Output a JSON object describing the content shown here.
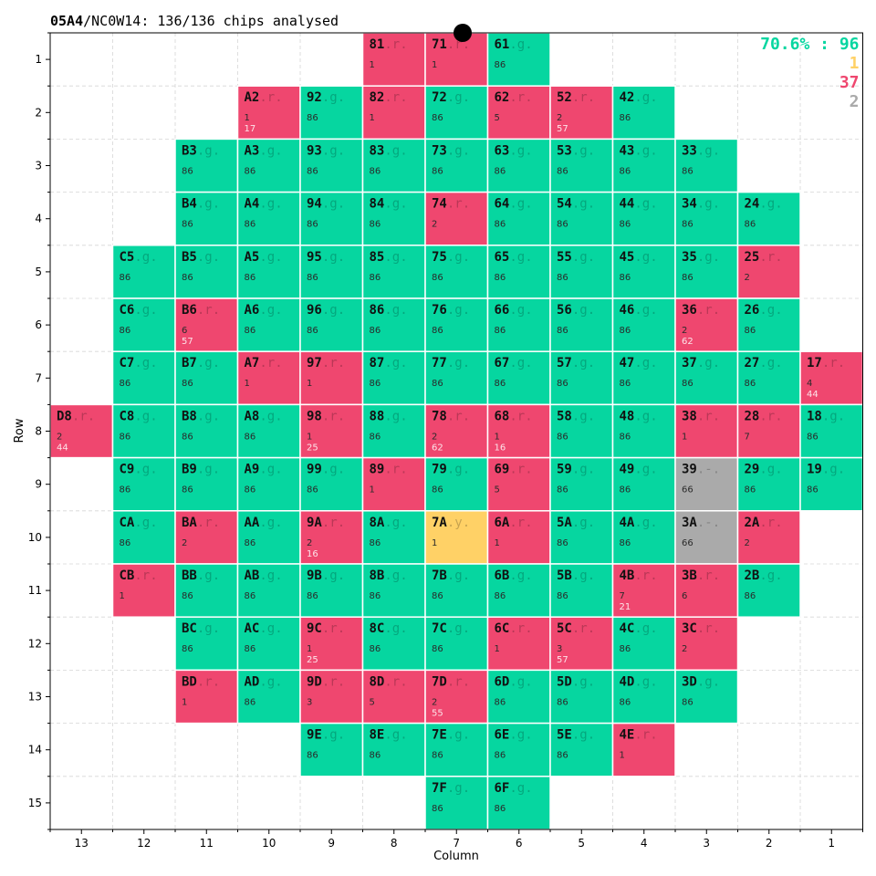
{
  "header": {
    "title_bold": "05A4",
    "title_rest": "/NC0W14:  136/136 chips analysed"
  },
  "legend": [
    {
      "text": "70.6% : 96",
      "color": "#06d6a0"
    },
    {
      "text": "1",
      "color": "#ffd166"
    },
    {
      "text": "37",
      "color": "#ef476f"
    },
    {
      "text": "2",
      "color": "#aaaaaa"
    }
  ],
  "colors": {
    "g": "#06d6a0",
    "y": "#ffd166",
    "r": "#ef476f",
    "-": "#aaaaaa"
  },
  "chart_data": {
    "type": "heatmap",
    "title": "05A4/NC0W14:  136/136 chips analysed",
    "xlabel": "Column",
    "ylabel": "Row",
    "x_ticks": [
      "13",
      "12",
      "11",
      "10",
      "9",
      "8",
      "7",
      "6",
      "5",
      "4",
      "3",
      "2",
      "1"
    ],
    "y_ticks": [
      "1",
      "2",
      "3",
      "4",
      "5",
      "6",
      "7",
      "8",
      "9",
      "10",
      "11",
      "12",
      "13",
      "14",
      "15"
    ],
    "grid": true,
    "legend_position": "top-right",
    "cells": [
      {
        "id": "81",
        "row": 1,
        "col": 8,
        "s": "r",
        "a": "1",
        "b": ""
      },
      {
        "id": "71",
        "row": 1,
        "col": 7,
        "s": "r",
        "a": "1",
        "b": ""
      },
      {
        "id": "61",
        "row": 1,
        "col": 6,
        "s": "g",
        "a": "86",
        "b": ""
      },
      {
        "id": "A2",
        "row": 2,
        "col": 10,
        "s": "r",
        "a": "1",
        "b": "17"
      },
      {
        "id": "92",
        "row": 2,
        "col": 9,
        "s": "g",
        "a": "86",
        "b": ""
      },
      {
        "id": "82",
        "row": 2,
        "col": 8,
        "s": "r",
        "a": "1",
        "b": ""
      },
      {
        "id": "72",
        "row": 2,
        "col": 7,
        "s": "g",
        "a": "86",
        "b": ""
      },
      {
        "id": "62",
        "row": 2,
        "col": 6,
        "s": "r",
        "a": "5",
        "b": ""
      },
      {
        "id": "52",
        "row": 2,
        "col": 5,
        "s": "r",
        "a": "2",
        "b": "57"
      },
      {
        "id": "42",
        "row": 2,
        "col": 4,
        "s": "g",
        "a": "86",
        "b": ""
      },
      {
        "id": "B3",
        "row": 3,
        "col": 11,
        "s": "g",
        "a": "86",
        "b": ""
      },
      {
        "id": "A3",
        "row": 3,
        "col": 10,
        "s": "g",
        "a": "86",
        "b": ""
      },
      {
        "id": "93",
        "row": 3,
        "col": 9,
        "s": "g",
        "a": "86",
        "b": ""
      },
      {
        "id": "83",
        "row": 3,
        "col": 8,
        "s": "g",
        "a": "86",
        "b": ""
      },
      {
        "id": "73",
        "row": 3,
        "col": 7,
        "s": "g",
        "a": "86",
        "b": ""
      },
      {
        "id": "63",
        "row": 3,
        "col": 6,
        "s": "g",
        "a": "86",
        "b": ""
      },
      {
        "id": "53",
        "row": 3,
        "col": 5,
        "s": "g",
        "a": "86",
        "b": ""
      },
      {
        "id": "43",
        "row": 3,
        "col": 4,
        "s": "g",
        "a": "86",
        "b": ""
      },
      {
        "id": "33",
        "row": 3,
        "col": 3,
        "s": "g",
        "a": "86",
        "b": ""
      },
      {
        "id": "B4",
        "row": 4,
        "col": 11,
        "s": "g",
        "a": "86",
        "b": ""
      },
      {
        "id": "A4",
        "row": 4,
        "col": 10,
        "s": "g",
        "a": "86",
        "b": ""
      },
      {
        "id": "94",
        "row": 4,
        "col": 9,
        "s": "g",
        "a": "86",
        "b": ""
      },
      {
        "id": "84",
        "row": 4,
        "col": 8,
        "s": "g",
        "a": "86",
        "b": ""
      },
      {
        "id": "74",
        "row": 4,
        "col": 7,
        "s": "r",
        "a": "2",
        "b": ""
      },
      {
        "id": "64",
        "row": 4,
        "col": 6,
        "s": "g",
        "a": "86",
        "b": ""
      },
      {
        "id": "54",
        "row": 4,
        "col": 5,
        "s": "g",
        "a": "86",
        "b": ""
      },
      {
        "id": "44",
        "row": 4,
        "col": 4,
        "s": "g",
        "a": "86",
        "b": ""
      },
      {
        "id": "34",
        "row": 4,
        "col": 3,
        "s": "g",
        "a": "86",
        "b": ""
      },
      {
        "id": "24",
        "row": 4,
        "col": 2,
        "s": "g",
        "a": "86",
        "b": ""
      },
      {
        "id": "C5",
        "row": 5,
        "col": 12,
        "s": "g",
        "a": "86",
        "b": ""
      },
      {
        "id": "B5",
        "row": 5,
        "col": 11,
        "s": "g",
        "a": "86",
        "b": ""
      },
      {
        "id": "A5",
        "row": 5,
        "col": 10,
        "s": "g",
        "a": "86",
        "b": ""
      },
      {
        "id": "95",
        "row": 5,
        "col": 9,
        "s": "g",
        "a": "86",
        "b": ""
      },
      {
        "id": "85",
        "row": 5,
        "col": 8,
        "s": "g",
        "a": "86",
        "b": ""
      },
      {
        "id": "75",
        "row": 5,
        "col": 7,
        "s": "g",
        "a": "86",
        "b": ""
      },
      {
        "id": "65",
        "row": 5,
        "col": 6,
        "s": "g",
        "a": "86",
        "b": ""
      },
      {
        "id": "55",
        "row": 5,
        "col": 5,
        "s": "g",
        "a": "86",
        "b": ""
      },
      {
        "id": "45",
        "row": 5,
        "col": 4,
        "s": "g",
        "a": "86",
        "b": ""
      },
      {
        "id": "35",
        "row": 5,
        "col": 3,
        "s": "g",
        "a": "86",
        "b": ""
      },
      {
        "id": "25",
        "row": 5,
        "col": 2,
        "s": "r",
        "a": "2",
        "b": ""
      },
      {
        "id": "C6",
        "row": 6,
        "col": 12,
        "s": "g",
        "a": "86",
        "b": ""
      },
      {
        "id": "B6",
        "row": 6,
        "col": 11,
        "s": "r",
        "a": "6",
        "b": "57"
      },
      {
        "id": "A6",
        "row": 6,
        "col": 10,
        "s": "g",
        "a": "86",
        "b": ""
      },
      {
        "id": "96",
        "row": 6,
        "col": 9,
        "s": "g",
        "a": "86",
        "b": ""
      },
      {
        "id": "86",
        "row": 6,
        "col": 8,
        "s": "g",
        "a": "86",
        "b": ""
      },
      {
        "id": "76",
        "row": 6,
        "col": 7,
        "s": "g",
        "a": "86",
        "b": ""
      },
      {
        "id": "66",
        "row": 6,
        "col": 6,
        "s": "g",
        "a": "86",
        "b": ""
      },
      {
        "id": "56",
        "row": 6,
        "col": 5,
        "s": "g",
        "a": "86",
        "b": ""
      },
      {
        "id": "46",
        "row": 6,
        "col": 4,
        "s": "g",
        "a": "86",
        "b": ""
      },
      {
        "id": "36",
        "row": 6,
        "col": 3,
        "s": "r",
        "a": "2",
        "b": "62"
      },
      {
        "id": "26",
        "row": 6,
        "col": 2,
        "s": "g",
        "a": "86",
        "b": ""
      },
      {
        "id": "C7",
        "row": 7,
        "col": 12,
        "s": "g",
        "a": "86",
        "b": ""
      },
      {
        "id": "B7",
        "row": 7,
        "col": 11,
        "s": "g",
        "a": "86",
        "b": ""
      },
      {
        "id": "A7",
        "row": 7,
        "col": 10,
        "s": "r",
        "a": "1",
        "b": ""
      },
      {
        "id": "97",
        "row": 7,
        "col": 9,
        "s": "r",
        "a": "1",
        "b": ""
      },
      {
        "id": "87",
        "row": 7,
        "col": 8,
        "s": "g",
        "a": "86",
        "b": ""
      },
      {
        "id": "77",
        "row": 7,
        "col": 7,
        "s": "g",
        "a": "86",
        "b": ""
      },
      {
        "id": "67",
        "row": 7,
        "col": 6,
        "s": "g",
        "a": "86",
        "b": ""
      },
      {
        "id": "57",
        "row": 7,
        "col": 5,
        "s": "g",
        "a": "86",
        "b": ""
      },
      {
        "id": "47",
        "row": 7,
        "col": 4,
        "s": "g",
        "a": "86",
        "b": ""
      },
      {
        "id": "37",
        "row": 7,
        "col": 3,
        "s": "g",
        "a": "86",
        "b": ""
      },
      {
        "id": "27",
        "row": 7,
        "col": 2,
        "s": "g",
        "a": "86",
        "b": ""
      },
      {
        "id": "17",
        "row": 7,
        "col": 1,
        "s": "r",
        "a": "4",
        "b": "44"
      },
      {
        "id": "D8",
        "row": 8,
        "col": 13,
        "s": "r",
        "a": "2",
        "b": "44"
      },
      {
        "id": "C8",
        "row": 8,
        "col": 12,
        "s": "g",
        "a": "86",
        "b": ""
      },
      {
        "id": "B8",
        "row": 8,
        "col": 11,
        "s": "g",
        "a": "86",
        "b": ""
      },
      {
        "id": "A8",
        "row": 8,
        "col": 10,
        "s": "g",
        "a": "86",
        "b": ""
      },
      {
        "id": "98",
        "row": 8,
        "col": 9,
        "s": "r",
        "a": "1",
        "b": "25"
      },
      {
        "id": "88",
        "row": 8,
        "col": 8,
        "s": "g",
        "a": "86",
        "b": ""
      },
      {
        "id": "78",
        "row": 8,
        "col": 7,
        "s": "r",
        "a": "2",
        "b": "62"
      },
      {
        "id": "68",
        "row": 8,
        "col": 6,
        "s": "r",
        "a": "1",
        "b": "16"
      },
      {
        "id": "58",
        "row": 8,
        "col": 5,
        "s": "g",
        "a": "86",
        "b": ""
      },
      {
        "id": "48",
        "row": 8,
        "col": 4,
        "s": "g",
        "a": "86",
        "b": ""
      },
      {
        "id": "38",
        "row": 8,
        "col": 3,
        "s": "r",
        "a": "1",
        "b": ""
      },
      {
        "id": "28",
        "row": 8,
        "col": 2,
        "s": "r",
        "a": "7",
        "b": ""
      },
      {
        "id": "18",
        "row": 8,
        "col": 1,
        "s": "g",
        "a": "86",
        "b": ""
      },
      {
        "id": "C9",
        "row": 9,
        "col": 12,
        "s": "g",
        "a": "86",
        "b": ""
      },
      {
        "id": "B9",
        "row": 9,
        "col": 11,
        "s": "g",
        "a": "86",
        "b": ""
      },
      {
        "id": "A9",
        "row": 9,
        "col": 10,
        "s": "g",
        "a": "86",
        "b": ""
      },
      {
        "id": "99",
        "row": 9,
        "col": 9,
        "s": "g",
        "a": "86",
        "b": ""
      },
      {
        "id": "89",
        "row": 9,
        "col": 8,
        "s": "r",
        "a": "1",
        "b": ""
      },
      {
        "id": "79",
        "row": 9,
        "col": 7,
        "s": "g",
        "a": "86",
        "b": ""
      },
      {
        "id": "69",
        "row": 9,
        "col": 6,
        "s": "r",
        "a": "5",
        "b": ""
      },
      {
        "id": "59",
        "row": 9,
        "col": 5,
        "s": "g",
        "a": "86",
        "b": ""
      },
      {
        "id": "49",
        "row": 9,
        "col": 4,
        "s": "g",
        "a": "86",
        "b": ""
      },
      {
        "id": "39",
        "row": 9,
        "col": 3,
        "s": "-",
        "a": "66",
        "b": ""
      },
      {
        "id": "29",
        "row": 9,
        "col": 2,
        "s": "g",
        "a": "86",
        "b": ""
      },
      {
        "id": "19",
        "row": 9,
        "col": 1,
        "s": "g",
        "a": "86",
        "b": ""
      },
      {
        "id": "CA",
        "row": 10,
        "col": 12,
        "s": "g",
        "a": "86",
        "b": ""
      },
      {
        "id": "BA",
        "row": 10,
        "col": 11,
        "s": "r",
        "a": "2",
        "b": ""
      },
      {
        "id": "AA",
        "row": 10,
        "col": 10,
        "s": "g",
        "a": "86",
        "b": ""
      },
      {
        "id": "9A",
        "row": 10,
        "col": 9,
        "s": "r",
        "a": "2",
        "b": "16"
      },
      {
        "id": "8A",
        "row": 10,
        "col": 8,
        "s": "g",
        "a": "86",
        "b": ""
      },
      {
        "id": "7A",
        "row": 10,
        "col": 7,
        "s": "y",
        "a": "1",
        "b": ""
      },
      {
        "id": "6A",
        "row": 10,
        "col": 6,
        "s": "r",
        "a": "1",
        "b": ""
      },
      {
        "id": "5A",
        "row": 10,
        "col": 5,
        "s": "g",
        "a": "86",
        "b": ""
      },
      {
        "id": "4A",
        "row": 10,
        "col": 4,
        "s": "g",
        "a": "86",
        "b": ""
      },
      {
        "id": "3A",
        "row": 10,
        "col": 3,
        "s": "-",
        "a": "66",
        "b": ""
      },
      {
        "id": "2A",
        "row": 10,
        "col": 2,
        "s": "r",
        "a": "2",
        "b": ""
      },
      {
        "id": "CB",
        "row": 11,
        "col": 12,
        "s": "r",
        "a": "1",
        "b": ""
      },
      {
        "id": "BB",
        "row": 11,
        "col": 11,
        "s": "g",
        "a": "86",
        "b": ""
      },
      {
        "id": "AB",
        "row": 11,
        "col": 10,
        "s": "g",
        "a": "86",
        "b": ""
      },
      {
        "id": "9B",
        "row": 11,
        "col": 9,
        "s": "g",
        "a": "86",
        "b": ""
      },
      {
        "id": "8B",
        "row": 11,
        "col": 8,
        "s": "g",
        "a": "86",
        "b": ""
      },
      {
        "id": "7B",
        "row": 11,
        "col": 7,
        "s": "g",
        "a": "86",
        "b": ""
      },
      {
        "id": "6B",
        "row": 11,
        "col": 6,
        "s": "g",
        "a": "86",
        "b": ""
      },
      {
        "id": "5B",
        "row": 11,
        "col": 5,
        "s": "g",
        "a": "86",
        "b": ""
      },
      {
        "id": "4B",
        "row": 11,
        "col": 4,
        "s": "r",
        "a": "7",
        "b": "21"
      },
      {
        "id": "3B",
        "row": 11,
        "col": 3,
        "s": "r",
        "a": "6",
        "b": ""
      },
      {
        "id": "2B",
        "row": 11,
        "col": 2,
        "s": "g",
        "a": "86",
        "b": ""
      },
      {
        "id": "BC",
        "row": 12,
        "col": 11,
        "s": "g",
        "a": "86",
        "b": ""
      },
      {
        "id": "AC",
        "row": 12,
        "col": 10,
        "s": "g",
        "a": "86",
        "b": ""
      },
      {
        "id": "9C",
        "row": 12,
        "col": 9,
        "s": "r",
        "a": "1",
        "b": "25"
      },
      {
        "id": "8C",
        "row": 12,
        "col": 8,
        "s": "g",
        "a": "86",
        "b": ""
      },
      {
        "id": "7C",
        "row": 12,
        "col": 7,
        "s": "g",
        "a": "86",
        "b": ""
      },
      {
        "id": "6C",
        "row": 12,
        "col": 6,
        "s": "r",
        "a": "1",
        "b": ""
      },
      {
        "id": "5C",
        "row": 12,
        "col": 5,
        "s": "r",
        "a": "3",
        "b": "57"
      },
      {
        "id": "4C",
        "row": 12,
        "col": 4,
        "s": "g",
        "a": "86",
        "b": ""
      },
      {
        "id": "3C",
        "row": 12,
        "col": 3,
        "s": "r",
        "a": "2",
        "b": ""
      },
      {
        "id": "BD",
        "row": 13,
        "col": 11,
        "s": "r",
        "a": "1",
        "b": ""
      },
      {
        "id": "AD",
        "row": 13,
        "col": 10,
        "s": "g",
        "a": "86",
        "b": ""
      },
      {
        "id": "9D",
        "row": 13,
        "col": 9,
        "s": "r",
        "a": "3",
        "b": ""
      },
      {
        "id": "8D",
        "row": 13,
        "col": 8,
        "s": "r",
        "a": "5",
        "b": ""
      },
      {
        "id": "7D",
        "row": 13,
        "col": 7,
        "s": "r",
        "a": "2",
        "b": "55"
      },
      {
        "id": "6D",
        "row": 13,
        "col": 6,
        "s": "g",
        "a": "86",
        "b": ""
      },
      {
        "id": "5D",
        "row": 13,
        "col": 5,
        "s": "g",
        "a": "86",
        "b": ""
      },
      {
        "id": "4D",
        "row": 13,
        "col": 4,
        "s": "g",
        "a": "86",
        "b": ""
      },
      {
        "id": "3D",
        "row": 13,
        "col": 3,
        "s": "g",
        "a": "86",
        "b": ""
      },
      {
        "id": "9E",
        "row": 14,
        "col": 9,
        "s": "g",
        "a": "86",
        "b": ""
      },
      {
        "id": "8E",
        "row": 14,
        "col": 8,
        "s": "g",
        "a": "86",
        "b": ""
      },
      {
        "id": "7E",
        "row": 14,
        "col": 7,
        "s": "g",
        "a": "86",
        "b": ""
      },
      {
        "id": "6E",
        "row": 14,
        "col": 6,
        "s": "g",
        "a": "86",
        "b": ""
      },
      {
        "id": "5E",
        "row": 14,
        "col": 5,
        "s": "g",
        "a": "86",
        "b": ""
      },
      {
        "id": "4E",
        "row": 14,
        "col": 4,
        "s": "r",
        "a": "1",
        "b": ""
      },
      {
        "id": "7F",
        "row": 15,
        "col": 7,
        "s": "g",
        "a": "86",
        "b": ""
      },
      {
        "id": "6F",
        "row": 15,
        "col": 6,
        "s": "g",
        "a": "86",
        "b": ""
      }
    ]
  }
}
